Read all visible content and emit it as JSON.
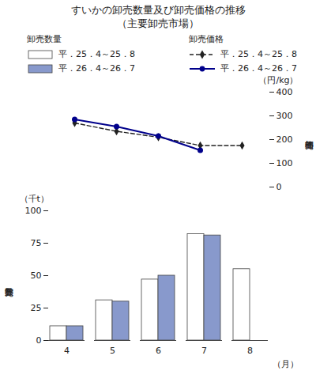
{
  "chart_data": [
    {
      "type": "bar",
      "title": "すいかの卸売数量及び卸売価格の推移",
      "subtitle": "（主要卸売市場）",
      "ylabel": "卸売数量",
      "xlabel": "（月）",
      "annotations": [
        "（千t）"
      ],
      "categories": [
        4,
        5,
        6,
        7,
        8
      ],
      "series": [
        {
          "name": "平．25．4～25．8",
          "color": "#ffffff",
          "values": [
            11,
            31,
            47,
            82,
            55
          ]
        },
        {
          "name": "平．26．4～26．7",
          "color": "#8899cc",
          "values": [
            11,
            30,
            50,
            81,
            null
          ]
        }
      ],
      "ylim": [
        0,
        100
      ],
      "yticks": [
        0,
        25,
        50,
        75,
        100
      ],
      "grid": false,
      "legend": "top"
    },
    {
      "type": "line",
      "ylabel": "卸売価格",
      "annotations": [
        "（円/kg）"
      ],
      "categories": [
        4,
        5,
        6,
        7,
        8
      ],
      "series": [
        {
          "name": "平．25．4～25．8",
          "color": "#222222",
          "marker": "diamond",
          "line_style": "dashed",
          "values": [
            270,
            235,
            210,
            175,
            175
          ]
        },
        {
          "name": "平．26．4～26．7",
          "color": "#00008B",
          "marker": "circle",
          "line_style": "solid",
          "values": [
            285,
            255,
            215,
            155,
            null
          ]
        }
      ],
      "ylim": [
        0,
        400
      ],
      "yticks": [
        0,
        100,
        200,
        300,
        400
      ],
      "grid": false,
      "tick_labels": "y",
      "legend": "top"
    }
  ]
}
